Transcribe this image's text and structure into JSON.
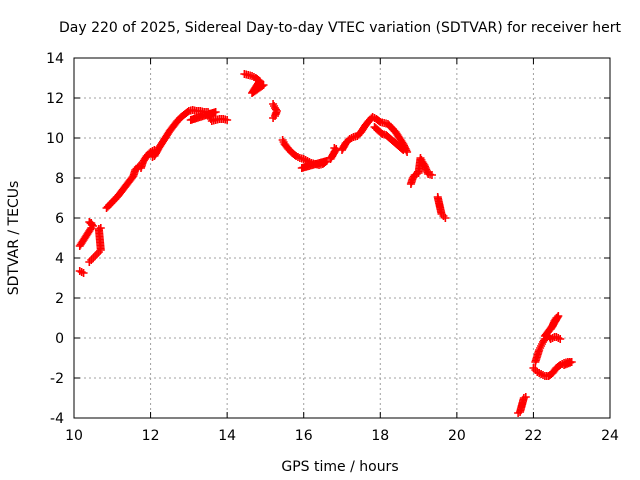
{
  "chart_data": {
    "type": "scatter",
    "title": "Day 220 of 2025, Sidereal Day-to-day VTEC variation (SDTVAR) for receiver hert",
    "xlabel": "GPS time / hours",
    "ylabel": "SDTVAR / TECUs",
    "xlim": [
      10,
      24
    ],
    "ylim": [
      -4,
      14
    ],
    "xticks": [
      10,
      12,
      14,
      16,
      18,
      20,
      22,
      24
    ],
    "yticks": [
      -4,
      -2,
      0,
      2,
      4,
      6,
      8,
      10,
      12,
      14
    ],
    "grid": true,
    "marker": "+",
    "color": "#ff0000",
    "series": [
      {
        "name": "SDTVAR",
        "segments": [
          [
            [
              10.15,
              3.35
            ],
            [
              10.2,
              3.3
            ],
            [
              10.25,
              3.25
            ]
          ],
          [
            [
              10.15,
              4.6
            ],
            [
              10.2,
              4.75
            ],
            [
              10.25,
              4.9
            ],
            [
              10.3,
              5.05
            ],
            [
              10.35,
              5.2
            ],
            [
              10.4,
              5.35
            ],
            [
              10.45,
              5.5
            ],
            [
              10.5,
              5.6
            ],
            [
              10.4,
              5.8
            ],
            [
              10.45,
              5.75
            ]
          ],
          [
            [
              10.4,
              3.8
            ],
            [
              10.45,
              3.9
            ],
            [
              10.5,
              4.0
            ],
            [
              10.55,
              4.1
            ],
            [
              10.6,
              4.2
            ],
            [
              10.65,
              4.3
            ],
            [
              10.7,
              4.4
            ],
            [
              10.65,
              5.45
            ],
            [
              10.7,
              5.5
            ]
          ],
          [
            [
              10.85,
              6.5
            ],
            [
              10.95,
              6.7
            ],
            [
              11.05,
              6.9
            ],
            [
              11.15,
              7.1
            ],
            [
              11.25,
              7.35
            ],
            [
              11.35,
              7.6
            ],
            [
              11.45,
              7.85
            ],
            [
              11.55,
              8.1
            ],
            [
              11.6,
              8.4
            ],
            [
              11.7,
              8.6
            ],
            [
              11.75,
              8.5
            ],
            [
              11.8,
              8.8
            ],
            [
              11.9,
              9.1
            ],
            [
              12.0,
              9.3
            ],
            [
              12.1,
              9.4
            ]
          ],
          [
            [
              12.05,
              9.05
            ],
            [
              12.1,
              9.1
            ],
            [
              12.2,
              9.45
            ],
            [
              12.3,
              9.75
            ],
            [
              12.4,
              10.05
            ],
            [
              12.5,
              10.35
            ],
            [
              12.6,
              10.6
            ],
            [
              12.7,
              10.85
            ],
            [
              12.8,
              11.05
            ],
            [
              12.9,
              11.2
            ],
            [
              13.0,
              11.35
            ],
            [
              13.1,
              11.4
            ],
            [
              13.2,
              11.35
            ],
            [
              13.3,
              11.35
            ],
            [
              13.4,
              11.3
            ],
            [
              13.5,
              11.3
            ],
            [
              13.55,
              11.05
            ],
            [
              13.6,
              10.85
            ],
            [
              13.7,
              10.9
            ],
            [
              13.8,
              10.95
            ],
            [
              13.9,
              10.95
            ],
            [
              14.0,
              10.9
            ],
            [
              13.05,
              10.9
            ],
            [
              13.7,
              11.3
            ]
          ],
          [
            [
              14.45,
              13.2
            ],
            [
              14.55,
              13.15
            ],
            [
              14.65,
              13.1
            ],
            [
              14.75,
              13.0
            ],
            [
              14.85,
              12.85
            ],
            [
              14.65,
              12.25
            ],
            [
              14.95,
              12.65
            ]
          ],
          [
            [
              15.2,
              11.7
            ],
            [
              15.25,
              11.5
            ],
            [
              15.3,
              11.35
            ],
            [
              15.25,
              11.1
            ],
            [
              15.2,
              11.0
            ]
          ],
          [
            [
              15.45,
              9.9
            ],
            [
              15.5,
              9.7
            ],
            [
              15.6,
              9.45
            ],
            [
              15.7,
              9.25
            ],
            [
              15.8,
              9.1
            ],
            [
              15.9,
              9.0
            ],
            [
              16.0,
              8.95
            ],
            [
              16.1,
              8.85
            ],
            [
              16.2,
              8.75
            ],
            [
              16.3,
              8.7
            ],
            [
              16.4,
              8.65
            ],
            [
              16.5,
              8.7
            ],
            [
              16.6,
              8.85
            ],
            [
              15.95,
              8.5
            ]
          ],
          [
            [
              16.8,
              9.5
            ],
            [
              16.85,
              9.45
            ],
            [
              16.7,
              8.95
            ]
          ],
          [
            [
              17.0,
              9.4
            ],
            [
              17.1,
              9.75
            ],
            [
              17.2,
              9.95
            ],
            [
              17.3,
              10.05
            ],
            [
              17.4,
              10.1
            ],
            [
              17.5,
              10.3
            ],
            [
              17.6,
              10.6
            ],
            [
              17.7,
              10.85
            ],
            [
              17.8,
              11.05
            ],
            [
              17.9,
              10.95
            ],
            [
              18.0,
              10.8
            ],
            [
              18.1,
              10.75
            ],
            [
              18.2,
              10.7
            ],
            [
              18.3,
              10.5
            ],
            [
              18.4,
              10.3
            ],
            [
              18.5,
              10.0
            ],
            [
              18.6,
              9.7
            ],
            [
              18.7,
              9.3
            ],
            [
              17.85,
              10.55
            ],
            [
              18.05,
              10.2
            ],
            [
              18.15,
              10.15
            ],
            [
              18.6,
              9.4
            ]
          ],
          [
            [
              18.8,
              7.7
            ],
            [
              18.85,
              8.0
            ],
            [
              18.9,
              8.15
            ],
            [
              19.0,
              8.25
            ],
            [
              19.05,
              9.0
            ],
            [
              19.1,
              8.8
            ],
            [
              19.15,
              8.65
            ],
            [
              19.25,
              8.2
            ],
            [
              19.35,
              8.15
            ]
          ],
          [
            [
              19.5,
              7.05
            ],
            [
              19.6,
              6.2
            ],
            [
              19.65,
              6.1
            ],
            [
              19.7,
              6.0
            ]
          ],
          [
            [
              21.6,
              -3.75
            ],
            [
              21.65,
              -3.7
            ],
            [
              21.75,
              -3.0
            ],
            [
              21.8,
              -2.95
            ]
          ],
          [
            [
              22.0,
              -1.5
            ],
            [
              22.05,
              -1.6
            ],
            [
              22.1,
              -1.7
            ],
            [
              22.2,
              -1.8
            ],
            [
              22.3,
              -1.9
            ],
            [
              22.4,
              -1.9
            ],
            [
              22.5,
              -1.75
            ],
            [
              22.6,
              -1.5
            ],
            [
              22.7,
              -1.35
            ],
            [
              22.8,
              -1.25
            ],
            [
              22.9,
              -1.2
            ],
            [
              23.0,
              -1.2
            ],
            [
              22.8,
              -1.35
            ]
          ],
          [
            [
              22.05,
              -1.2
            ],
            [
              22.1,
              -0.9
            ],
            [
              22.15,
              -0.6
            ],
            [
              22.2,
              -0.4
            ],
            [
              22.25,
              -0.2
            ],
            [
              22.3,
              -0.05
            ],
            [
              22.35,
              0.05
            ],
            [
              22.4,
              0.1
            ],
            [
              22.45,
              -0.05
            ],
            [
              22.5,
              0.0
            ],
            [
              22.55,
              0.05
            ],
            [
              22.6,
              0.05
            ],
            [
              22.65,
              0.0
            ],
            [
              22.7,
              -0.05
            ]
          ],
          [
            [
              22.3,
              0.1
            ],
            [
              22.4,
              0.35
            ],
            [
              22.5,
              0.6
            ],
            [
              22.55,
              0.85
            ],
            [
              22.6,
              1.0
            ],
            [
              22.65,
              1.1
            ],
            [
              22.45,
              0.45
            ]
          ]
        ]
      }
    ]
  }
}
